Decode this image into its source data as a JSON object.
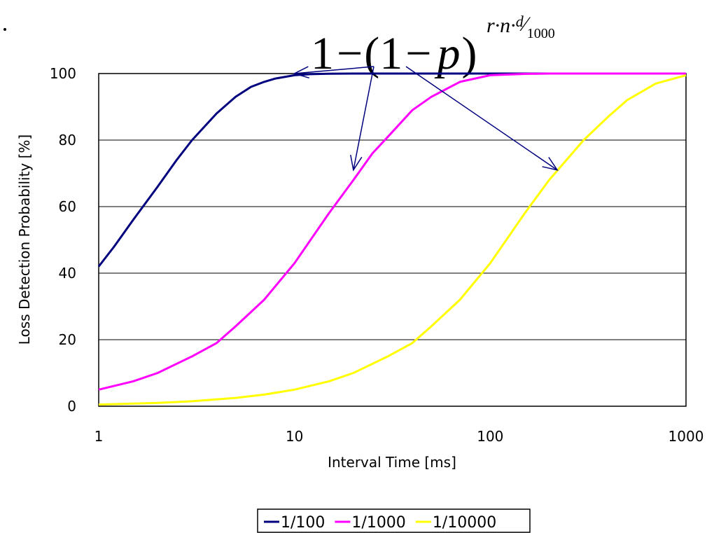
{
  "chart_data": {
    "type": "line",
    "xlabel": "Interval Time [ms]",
    "ylabel": "Loss Detection Probability [%]",
    "x_scale": "log",
    "xlim": [
      1,
      1000
    ],
    "ylim": [
      0,
      100
    ],
    "x_ticks": [
      1,
      10,
      100,
      1000
    ],
    "x_tick_labels": [
      "1",
      "10",
      "100",
      "1000"
    ],
    "y_ticks": [
      0,
      20,
      40,
      60,
      80,
      100
    ],
    "y_tick_labels": [
      "0",
      "20",
      "40",
      "60",
      "80",
      "100"
    ],
    "grid": "horizontal",
    "legend_position": "bottom",
    "annotation": {
      "formula_parts": {
        "lead": "1",
        "minus1": "−",
        "open": "(1",
        "minus2": "−",
        "var": "p",
        "close": ")",
        "exponent": "r·n·",
        "exp_num": "d",
        "exp_slash": "⁄",
        "exp_den": "1000"
      },
      "arrow_targets": [
        {
          "series": "1/100",
          "x": 10,
          "y": 100
        },
        {
          "series": "1/1000",
          "x": 20,
          "y": 71
        },
        {
          "series": "1/10000",
          "x": 220,
          "y": 71
        }
      ]
    },
    "series": [
      {
        "name": "1/100",
        "color": "#00007f",
        "x": [
          1,
          1.2,
          1.5,
          2,
          2.5,
          3,
          4,
          5,
          6,
          7,
          8,
          10,
          12,
          15,
          20,
          30,
          50,
          100,
          200,
          500,
          1000
        ],
        "y": [
          42,
          48,
          56,
          66,
          74,
          80,
          88,
          93,
          96,
          97.5,
          98.5,
          99.5,
          99.8,
          99.95,
          100,
          100,
          100,
          100,
          100,
          100,
          100
        ]
      },
      {
        "name": "1/1000",
        "color": "#ff00ff",
        "x": [
          1,
          1.5,
          2,
          3,
          4,
          5,
          7,
          10,
          15,
          20,
          25,
          30,
          40,
          50,
          70,
          100,
          150,
          200,
          500,
          1000
        ],
        "y": [
          5,
          7.5,
          10,
          15,
          19,
          24,
          32,
          43,
          58,
          68,
          76,
          81,
          89,
          93,
          97.5,
          99.5,
          99.9,
          100,
          100,
          100
        ]
      },
      {
        "name": "1/10000",
        "color": "#ffff00",
        "x": [
          1,
          2,
          3,
          5,
          7,
          10,
          15,
          20,
          30,
          40,
          50,
          70,
          100,
          150,
          200,
          300,
          400,
          500,
          700,
          1000
        ],
        "y": [
          0.5,
          1,
          1.5,
          2.5,
          3.5,
          5,
          7.5,
          10,
          15,
          19,
          24,
          32,
          43,
          58,
          68,
          80,
          87,
          92,
          97,
          99.5
        ]
      }
    ]
  }
}
